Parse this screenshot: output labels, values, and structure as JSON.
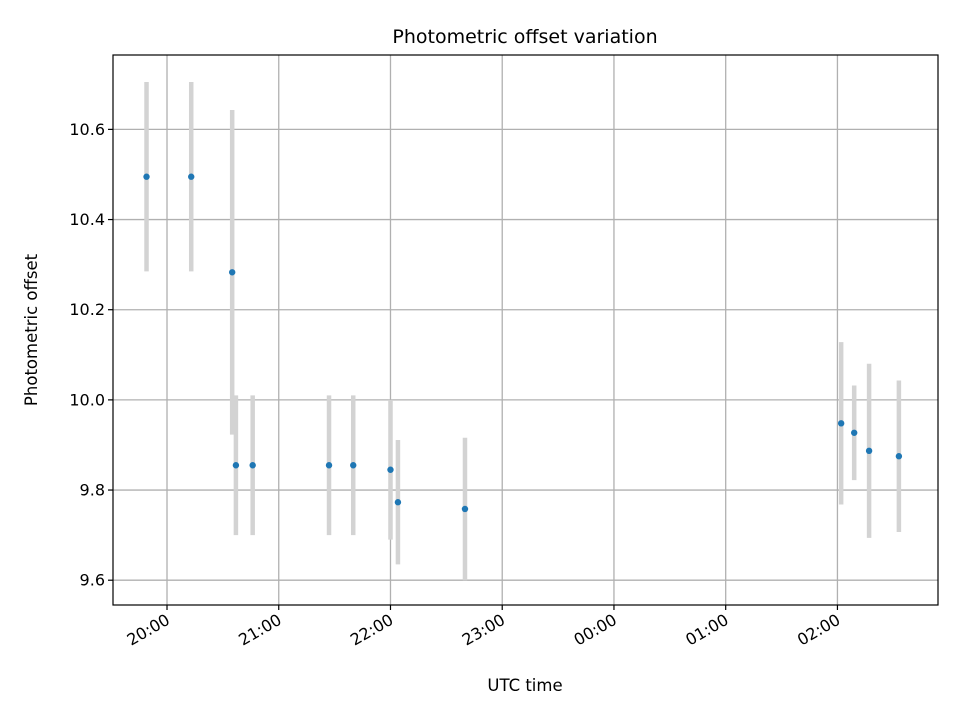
{
  "chart_data": {
    "type": "scatter",
    "title": "Photometric offset variation",
    "xlabel": "UTC time",
    "ylabel": "Photometric offset",
    "x_ticks": [
      "20:00",
      "21:00",
      "22:00",
      "23:00",
      "00:00",
      "01:00",
      "02:00"
    ],
    "y_ticks": [
      "9.6",
      "9.8",
      "10.0",
      "10.2",
      "10.4",
      "10.6"
    ],
    "ylim": [
      9.545,
      10.765
    ],
    "xlim": [
      "19:31",
      "02:54"
    ],
    "grid": true,
    "marker_color": "#1f77b4",
    "errorbar_color": "#d3d3d3",
    "points": [
      {
        "time": "19:49",
        "y": 10.495,
        "err": 0.21
      },
      {
        "time": "20:13",
        "y": 10.495,
        "err": 0.21
      },
      {
        "time": "20:35",
        "y": 10.283,
        "err": 0.36
      },
      {
        "time": "20:37",
        "y": 9.855,
        "err": 0.155
      },
      {
        "time": "20:46",
        "y": 9.855,
        "err": 0.155
      },
      {
        "time": "21:27",
        "y": 9.855,
        "err": 0.155
      },
      {
        "time": "21:40",
        "y": 9.855,
        "err": 0.155
      },
      {
        "time": "22:00",
        "y": 9.845,
        "err": 0.155
      },
      {
        "time": "22:04",
        "y": 9.773,
        "err": 0.138
      },
      {
        "time": "22:40",
        "y": 9.758,
        "err": 0.158
      },
      {
        "time": "02:02",
        "y": 9.948,
        "err": 0.18
      },
      {
        "time": "02:09",
        "y": 9.927,
        "err": 0.105
      },
      {
        "time": "02:17",
        "y": 9.887,
        "err": 0.193
      },
      {
        "time": "02:33",
        "y": 9.875,
        "err": 0.168
      }
    ]
  }
}
